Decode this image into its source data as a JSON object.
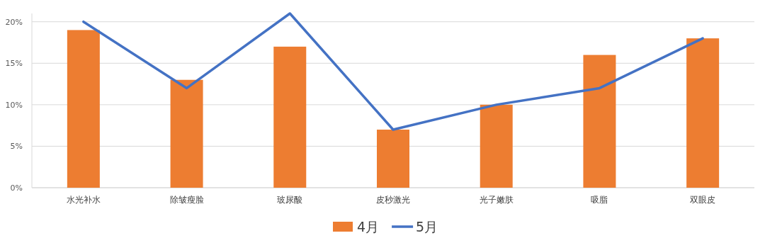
{
  "chart_data": {
    "type": "bar",
    "categories": [
      "水光补水",
      "除皱瘦脸",
      "玻尿酸",
      "皮秒激光",
      "光子嫩肤",
      "吸脂",
      "双眼皮"
    ],
    "series": [
      {
        "name": "4月",
        "color": "#ed7d31",
        "values": [
          19,
          13,
          17,
          7,
          10,
          16,
          18
        ]
      },
      {
        "name": "5月",
        "type": "line",
        "color": "#4472c4",
        "values": [
          20,
          12,
          21,
          7,
          10,
          12,
          18
        ]
      }
    ],
    "ylim": [
      0,
      21
    ],
    "yticks": [
      {
        "value": 0,
        "label": "0%"
      },
      {
        "value": 5,
        "label": "5%"
      },
      {
        "value": 10,
        "label": "10%"
      },
      {
        "value": 15,
        "label": "15%"
      },
      {
        "value": 20,
        "label": "20%"
      }
    ],
    "grid": "y",
    "legend": "bottom",
    "marker": "none",
    "line_style": "solid"
  }
}
